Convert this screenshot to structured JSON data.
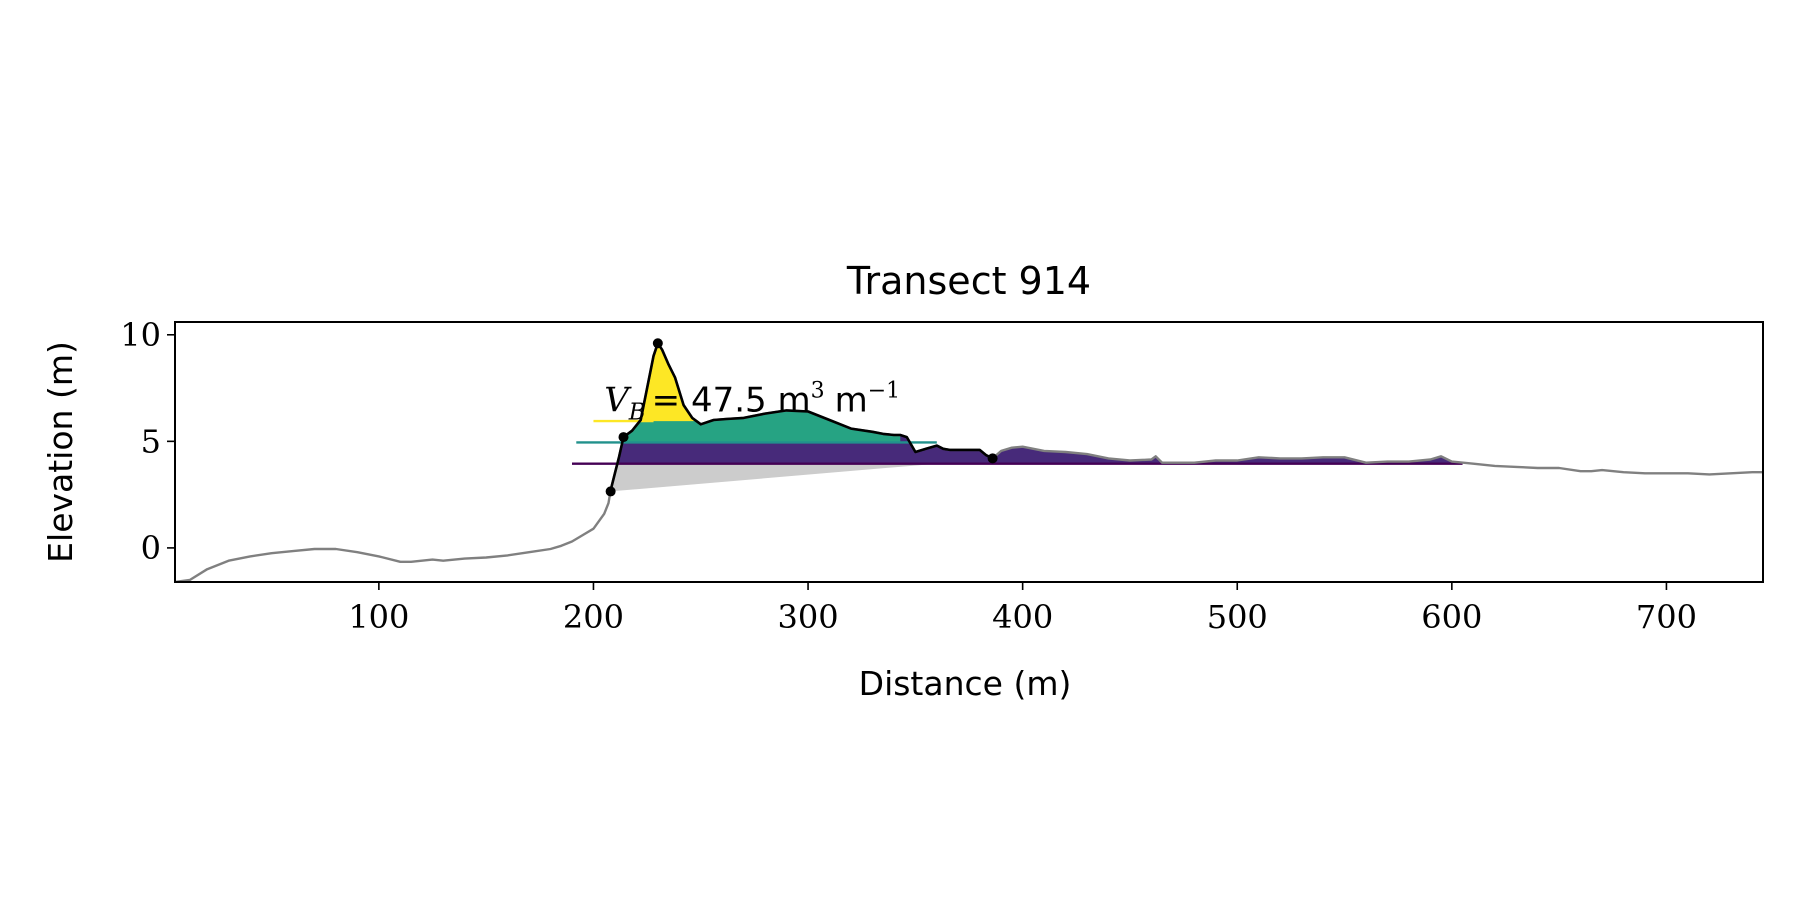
{
  "chart_data": {
    "type": "area",
    "title": "Transect 914",
    "xlabel": "Distance (m)",
    "ylabel": "Elevation (m)",
    "xlim": [
      5,
      745
    ],
    "ylim": [
      -1.6,
      10.6
    ],
    "x_ticks": [
      100,
      200,
      300,
      400,
      500,
      600,
      700
    ],
    "y_ticks": [
      0,
      5,
      10
    ],
    "grid": false,
    "annotation": {
      "symbol": "V",
      "subscript": "B",
      "text": "= 47.5 m",
      "exponent": "3",
      "unit": "m",
      "unit_exponent": "−1",
      "x": 205,
      "y": 6.4
    },
    "colors": {
      "profile": "#808080",
      "dune_profile": "#000000",
      "layer_low": "#440154",
      "layer_mid": "#21918c",
      "layer_high": "#fde725",
      "layer_mid_fill": "#26a383",
      "layer_low_fill": "#472a7a",
      "base_fill": "#cccccc"
    },
    "profile": {
      "x": [
        5,
        12,
        20,
        30,
        40,
        50,
        60,
        70,
        80,
        90,
        100,
        110,
        115,
        125,
        130,
        140,
        150,
        160,
        170,
        180,
        185,
        190,
        195,
        200,
        205,
        207,
        208,
        210,
        212,
        214,
        218,
        222,
        225,
        228,
        230,
        232,
        235,
        238,
        242,
        246,
        250,
        256,
        262,
        270,
        280,
        290,
        300,
        310,
        320,
        330,
        335,
        340,
        343,
        346,
        350,
        355,
        360,
        363,
        366,
        370,
        375,
        380,
        383,
        386,
        390,
        395,
        400,
        405,
        410,
        420,
        430,
        440,
        450,
        460,
        462,
        465,
        470,
        480,
        490,
        500,
        510,
        520,
        530,
        540,
        550,
        560,
        570,
        580,
        590,
        595,
        600,
        610,
        620,
        630,
        640,
        650,
        660,
        665,
        670,
        680,
        690,
        700,
        710,
        720,
        730,
        740,
        745
      ],
      "y": [
        -1.6,
        -1.5,
        -1.0,
        -0.6,
        -0.4,
        -0.25,
        -0.15,
        -0.05,
        -0.05,
        -0.2,
        -0.4,
        -0.65,
        -0.65,
        -0.55,
        -0.6,
        -0.5,
        -0.45,
        -0.35,
        -0.2,
        -0.05,
        0.1,
        0.3,
        0.6,
        0.9,
        1.6,
        2.1,
        2.7,
        3.5,
        4.3,
        5.2,
        5.5,
        6.0,
        7.5,
        9.0,
        9.6,
        9.3,
        8.6,
        8.0,
        6.7,
        6.1,
        5.8,
        6.0,
        6.05,
        6.1,
        6.3,
        6.45,
        6.4,
        6.0,
        5.6,
        5.45,
        5.35,
        5.3,
        5.3,
        5.2,
        4.5,
        4.65,
        4.8,
        4.65,
        4.6,
        4.6,
        4.6,
        4.6,
        4.35,
        4.2,
        4.55,
        4.7,
        4.75,
        4.65,
        4.55,
        4.5,
        4.4,
        4.2,
        4.1,
        4.15,
        4.3,
        4.0,
        4.0,
        4.0,
        4.1,
        4.1,
        4.25,
        4.2,
        4.2,
        4.25,
        4.25,
        4.0,
        4.05,
        4.05,
        4.15,
        4.3,
        4.05,
        3.95,
        3.85,
        3.8,
        3.75,
        3.75,
        3.6,
        3.6,
        3.65,
        3.55,
        3.5,
        3.5,
        3.5,
        3.45,
        3.5,
        3.55,
        3.55
      ]
    },
    "dune": {
      "x_start": 208,
      "x_end": 386,
      "toe": {
        "x": 208,
        "y": 2.65
      },
      "crest": {
        "x": 230,
        "y": 9.6
      },
      "heel": {
        "x": 386,
        "y": 4.2
      },
      "marker_mid": {
        "x": 214,
        "y": 5.2
      }
    },
    "base_line": {
      "x": [
        208,
        360
      ],
      "y": [
        2.65,
        3.95
      ]
    },
    "layers": [
      {
        "level": 3.95,
        "line_x": [
          190,
          605
        ],
        "fill_x": [
          211,
          605
        ],
        "color": "layer_low",
        "fill": "layer_low_fill"
      },
      {
        "level": 4.95,
        "line_x": [
          192,
          360
        ],
        "fill_x": [
          214,
          343
        ],
        "color": "layer_mid",
        "fill": "layer_mid_fill"
      },
      {
        "level": 5.95,
        "line_x": [
          200,
          228
        ],
        "fill_x": [
          220,
          248
        ],
        "color": "layer_high",
        "fill": "layer_high"
      }
    ]
  }
}
